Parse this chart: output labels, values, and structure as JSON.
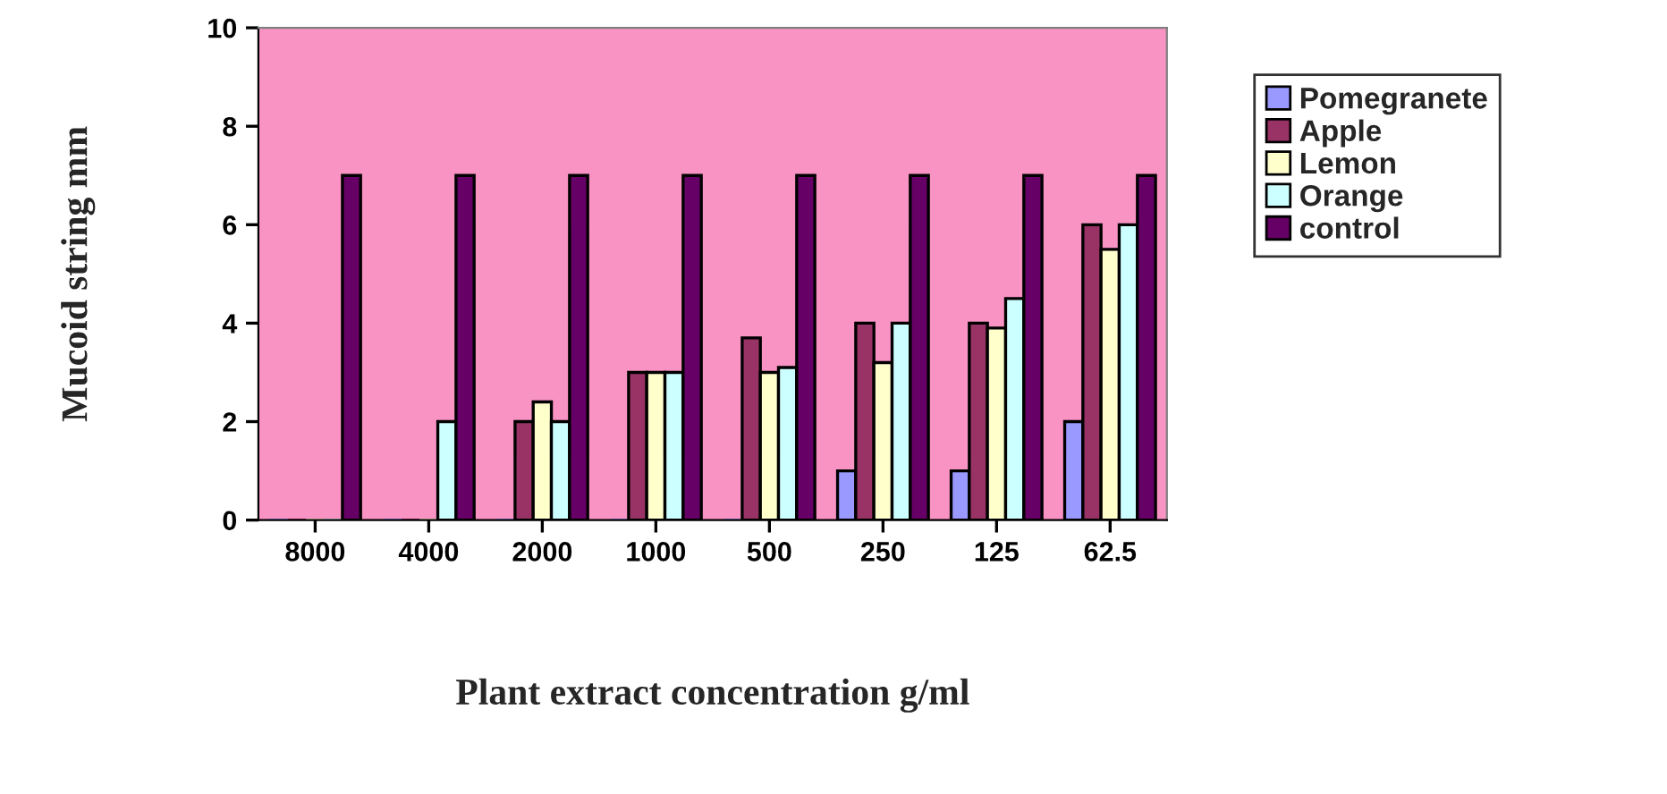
{
  "chart_data": {
    "type": "bar",
    "xlabel": "Plant extract concentration g/ml",
    "ylabel": "Mucoid string mm",
    "categories": [
      "8000",
      "4000",
      "2000",
      "1000",
      "500",
      "250",
      "125",
      "62.5"
    ],
    "series": [
      {
        "name": "Pomegranete",
        "color": "#9999ff",
        "values": [
          0,
          0,
          0,
          0,
          0,
          1,
          1,
          2
        ]
      },
      {
        "name": "Apple",
        "color": "#993366",
        "values": [
          0,
          0,
          2,
          3,
          3.7,
          4,
          4,
          6
        ]
      },
      {
        "name": "Lemon",
        "color": "#ffffcc",
        "values": [
          0,
          0,
          2.4,
          3,
          3,
          3.2,
          3.9,
          5.5
        ]
      },
      {
        "name": "Orange",
        "color": "#ccffff",
        "values": [
          0,
          2,
          2,
          3,
          3.1,
          4,
          4.5,
          6
        ]
      },
      {
        "name": "control",
        "color": "#660066",
        "values": [
          7,
          7,
          7,
          7,
          7,
          7,
          7,
          7
        ]
      }
    ],
    "ylim": [
      0,
      10
    ],
    "yticks": [
      0,
      2,
      4,
      6,
      8,
      10
    ],
    "grid": false,
    "legend": "right"
  }
}
